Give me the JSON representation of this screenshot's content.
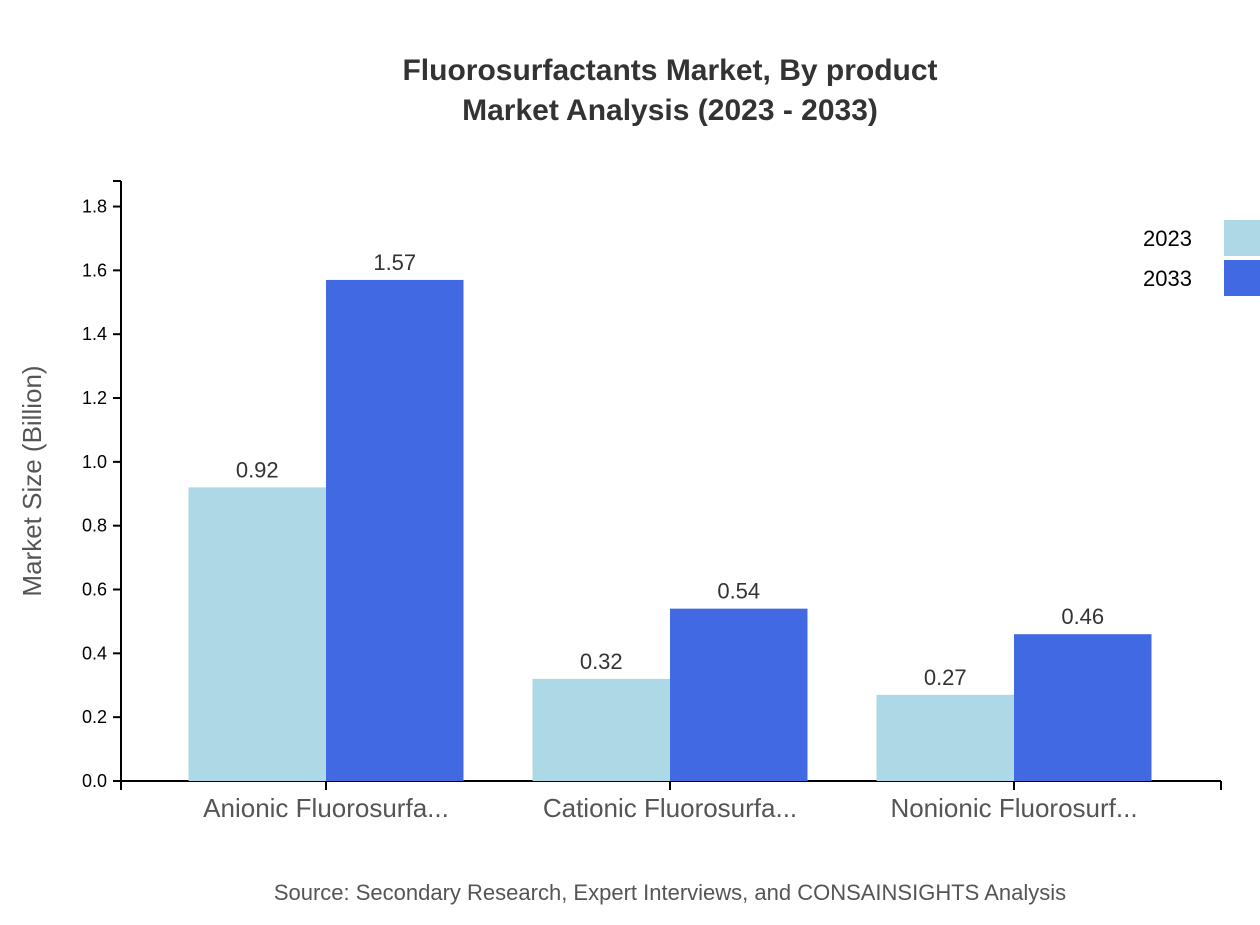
{
  "chart_data": {
    "type": "bar",
    "title_line1": "Fluorosurfactants Market, By product",
    "title_line2": "Market Analysis (2023 - 2033)",
    "ylabel": "Market Size (Billion)",
    "xlabel": "",
    "categories": [
      "Anionic Fluorosurfa...",
      "Cationic Fluorosurfa...",
      "Nonionic Fluorosurf..."
    ],
    "series": [
      {
        "name": "2023",
        "color": "#ADD8E6",
        "values": [
          0.92,
          0.32,
          0.27
        ],
        "labels": [
          "0.92",
          "0.32",
          "0.27"
        ]
      },
      {
        "name": "2033",
        "color": "#4169E1",
        "values": [
          1.57,
          0.54,
          0.46
        ],
        "labels": [
          "1.57",
          "0.54",
          "0.46"
        ]
      }
    ],
    "ylim": [
      0,
      1.88
    ],
    "yticks": [
      "0.0",
      "0.2",
      "0.4",
      "0.6",
      "0.8",
      "1.0",
      "1.2",
      "1.4",
      "1.6",
      "1.8"
    ],
    "grid": false,
    "legend_position": "top-right",
    "source": "Source: Secondary Research, Expert Interviews, and CONSAINSIGHTS Analysis"
  }
}
